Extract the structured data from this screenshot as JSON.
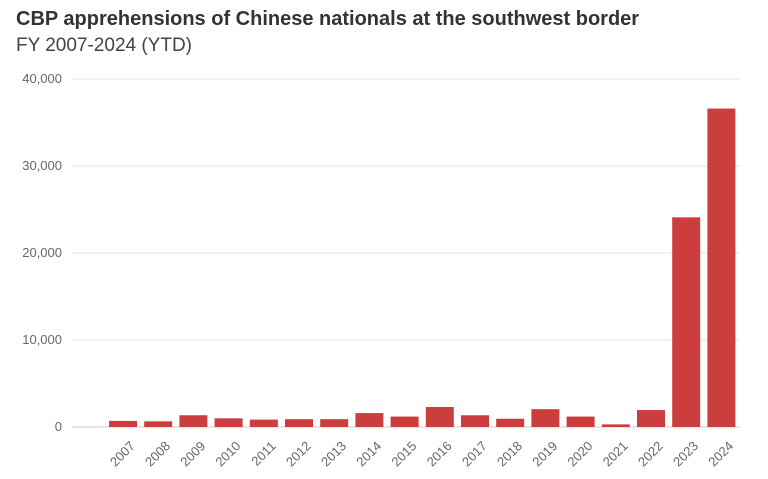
{
  "chart_data": {
    "type": "bar",
    "title": "CBP apprehensions of Chinese nationals at the southwest border",
    "subtitle": "FY 2007-2024 (YTD)",
    "xlabel": "",
    "ylabel": "",
    "categories": [
      "2007",
      "2008",
      "2009",
      "2010",
      "2011",
      "2012",
      "2013",
      "2014",
      "2015",
      "2016",
      "2017",
      "2018",
      "2019",
      "2020",
      "2021",
      "2022",
      "2023",
      "2024"
    ],
    "values": [
      700,
      650,
      1350,
      1000,
      850,
      900,
      900,
      1600,
      1200,
      2300,
      1350,
      950,
      2050,
      1200,
      300,
      1950,
      24100,
      36600
    ],
    "ylim": [
      0,
      40000
    ],
    "y_ticks": [
      0,
      10000,
      20000,
      30000,
      40000
    ],
    "y_tick_labels": [
      "0",
      "10,000",
      "20,000",
      "30,000",
      "40,000"
    ],
    "grid": true,
    "bar_color": "#cc3d3d"
  }
}
